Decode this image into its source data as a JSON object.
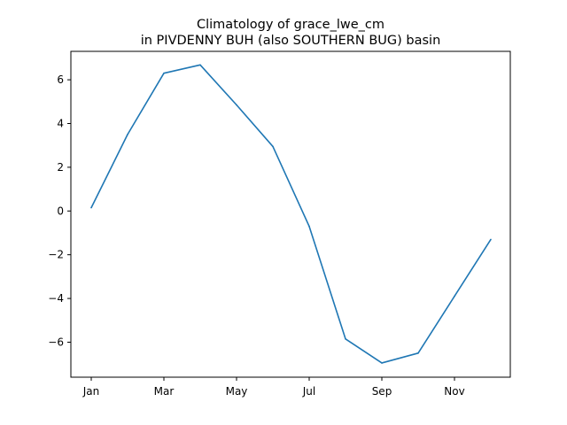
{
  "chart_data": {
    "type": "line",
    "title_line1": "Climatology of grace_lwe_cm",
    "title_line2": "in PIVDENNY BUH (also SOUTHERN BUG) basin",
    "xlabel": "",
    "ylabel": "",
    "x_tick_labels": [
      "Jan",
      "Mar",
      "May",
      "Jul",
      "Sep",
      "Nov"
    ],
    "y_tick_labels": [
      "6",
      "4",
      "2",
      "0",
      "−2",
      "−4",
      "−6"
    ],
    "ylim": [
      -7.6,
      7.3
    ],
    "grid": false,
    "series_color": "#1f77b4",
    "series": [
      {
        "x": [
          "Jan",
          "Feb",
          "Mar",
          "Apr",
          "May",
          "Jun",
          "Jul",
          "Aug",
          "Sep",
          "Oct",
          "Nov",
          "Dec"
        ],
        "values": [
          0.15,
          3.5,
          6.3,
          6.68,
          4.85,
          2.95,
          -0.7,
          -5.85,
          -6.95,
          -6.5,
          -3.9,
          -1.3
        ]
      }
    ]
  }
}
